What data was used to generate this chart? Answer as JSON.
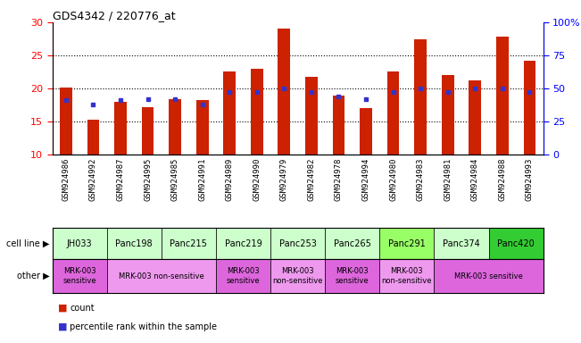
{
  "title": "GDS4342 / 220776_at",
  "samples": [
    "GSM924986",
    "GSM924992",
    "GSM924987",
    "GSM924995",
    "GSM924985",
    "GSM924991",
    "GSM924989",
    "GSM924990",
    "GSM924979",
    "GSM924982",
    "GSM924978",
    "GSM924994",
    "GSM924980",
    "GSM924983",
    "GSM924981",
    "GSM924984",
    "GSM924988",
    "GSM924993"
  ],
  "counts": [
    20.1,
    15.2,
    17.9,
    17.1,
    18.3,
    18.2,
    22.5,
    23.0,
    29.0,
    21.7,
    18.9,
    17.0,
    22.5,
    27.4,
    22.0,
    21.2,
    27.8,
    24.2
  ],
  "percentile_ranks": [
    41,
    38,
    41,
    42,
    42,
    38,
    47,
    47,
    50,
    47,
    44,
    42,
    47,
    50,
    47,
    50,
    50,
    47
  ],
  "cell_ranges": [
    [
      0,
      1
    ],
    [
      2,
      3
    ],
    [
      4,
      5
    ],
    [
      6,
      7
    ],
    [
      8,
      9
    ],
    [
      10,
      11
    ],
    [
      12,
      13
    ],
    [
      14,
      15
    ],
    [
      16,
      17
    ]
  ],
  "cell_names": [
    "JH033",
    "Panc198",
    "Panc215",
    "Panc219",
    "Panc253",
    "Panc265",
    "Panc291",
    "Panc374",
    "Panc420"
  ],
  "cell_colors": [
    "#ccffcc",
    "#ccffcc",
    "#ccffcc",
    "#ccffcc",
    "#ccffcc",
    "#ccffcc",
    "#99ff66",
    "#ccffcc",
    "#33cc33"
  ],
  "other_groups": [
    {
      "range": [
        0,
        1
      ],
      "text": "MRK-003\nsensitive",
      "color": "#dd66dd"
    },
    {
      "range": [
        2,
        5
      ],
      "text": "MRK-003 non-sensitive",
      "color": "#ee99ee"
    },
    {
      "range": [
        6,
        7
      ],
      "text": "MRK-003\nsensitive",
      "color": "#dd66dd"
    },
    {
      "range": [
        8,
        9
      ],
      "text": "MRK-003\nnon-sensitive",
      "color": "#ee99ee"
    },
    {
      "range": [
        10,
        11
      ],
      "text": "MRK-003\nsensitive",
      "color": "#dd66dd"
    },
    {
      "range": [
        12,
        13
      ],
      "text": "MRK-003\nnon-sensitive",
      "color": "#ee99ee"
    },
    {
      "range": [
        14,
        17
      ],
      "text": "MRK-003 sensitive",
      "color": "#dd66dd"
    }
  ],
  "bar_color": "#cc2200",
  "dot_color": "#3333cc",
  "ylim_left": [
    10,
    30
  ],
  "ylim_right": [
    0,
    100
  ],
  "yticks_left": [
    10,
    15,
    20,
    25,
    30
  ],
  "yticks_right": [
    0,
    25,
    50,
    75,
    100
  ],
  "bar_width": 0.45,
  "xticklabel_bg": "#dddddd"
}
